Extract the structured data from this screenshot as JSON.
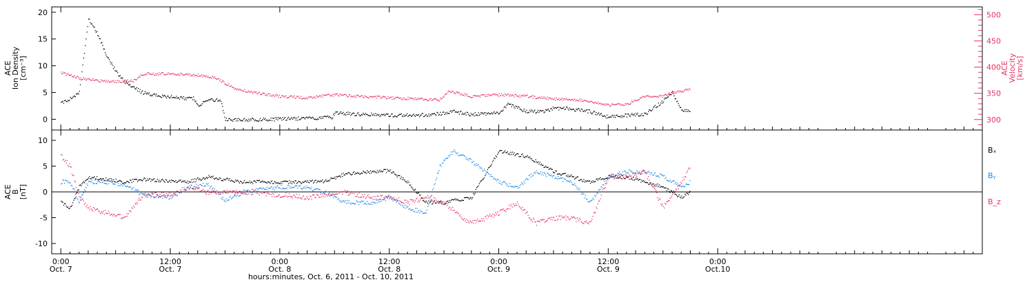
{
  "x_axis": {
    "title": "hours:minutes, Oct. 6, 2011 - Oct. 10, 2011",
    "tick_times": [
      "0:00",
      "12:00",
      "0:00",
      "12:00",
      "0:00",
      "12:00",
      "0:00"
    ],
    "tick_dates": [
      "Oct. 7",
      "Oct. 7",
      "Oct. 8",
      "Oct. 8",
      "Oct. 9",
      "Oct. 9",
      "Oct.10"
    ]
  },
  "chart_data": [
    {
      "type": "scatter",
      "panel": "top",
      "xlim": [
        "2011-10-06T23:00",
        "2011-10-11T05:00"
      ],
      "left_axis": {
        "label_lines": [
          "ACE",
          "Ion Density",
          "[cm⁻³]"
        ],
        "ylim": [
          -2,
          21
        ],
        "ticks": [
          0,
          5,
          10,
          15,
          20
        ],
        "color": "#000000"
      },
      "right_axis": {
        "label_lines": [
          "ACE",
          "Velocity",
          "[km/s]"
        ],
        "ylim": [
          280,
          515
        ],
        "ticks": [
          300,
          350,
          400,
          450,
          500
        ],
        "color": "#e8315f"
      },
      "series": [
        {
          "axis": "left",
          "color": "#000000",
          "points": [
            [
              "2011-10-07T00:00",
              3
            ],
            [
              "2011-10-07T01:00",
              4
            ],
            [
              "2011-10-07T02:00",
              5
            ],
            [
              "2011-10-07T03:00",
              19
            ],
            [
              "2011-10-07T04:00",
              16
            ],
            [
              "2011-10-07T05:00",
              12
            ],
            [
              "2011-10-07T06:00",
              9
            ],
            [
              "2011-10-07T07:00",
              7
            ],
            [
              "2011-10-07T08:00",
              6
            ],
            [
              "2011-10-07T09:00",
              5
            ],
            [
              "2011-10-07T10:00",
              4.6
            ],
            [
              "2011-10-07T12:00",
              4.3
            ],
            [
              "2011-10-07T13:30",
              4
            ],
            [
              "2011-10-07T14:30",
              4
            ],
            [
              "2011-10-07T15:00",
              2.5
            ],
            [
              "2011-10-07T16:00",
              3.7
            ],
            [
              "2011-10-07T17:30",
              3.6
            ],
            [
              "2011-10-07T18:00",
              0
            ],
            [
              "2011-10-07T21:00",
              0
            ],
            [
              "2011-10-08T00:00",
              0.1
            ],
            [
              "2011-10-08T04:00",
              0.3
            ],
            [
              "2011-10-08T05:40",
              0.4
            ],
            [
              "2011-10-08T06:00",
              1.3
            ],
            [
              "2011-10-08T09:00",
              1
            ],
            [
              "2011-10-08T12:00",
              0.8
            ],
            [
              "2011-10-08T15:00",
              0.8
            ],
            [
              "2011-10-08T18:00",
              1.2
            ],
            [
              "2011-10-08T19:00",
              1.5
            ],
            [
              "2011-10-08T21:00",
              1
            ],
            [
              "2011-10-09T00:00",
              1.2
            ],
            [
              "2011-10-09T01:00",
              3
            ],
            [
              "2011-10-09T03:00",
              1.5
            ],
            [
              "2011-10-09T05:00",
              1.5
            ],
            [
              "2011-10-09T06:00",
              2.2
            ],
            [
              "2011-10-09T08:00",
              2
            ],
            [
              "2011-10-09T10:00",
              1.5
            ],
            [
              "2011-10-09T12:00",
              0.5
            ],
            [
              "2011-10-09T14:00",
              0.8
            ],
            [
              "2011-10-09T16:00",
              1
            ],
            [
              "2011-10-09T18:00",
              3.5
            ],
            [
              "2011-10-09T19:00",
              5
            ],
            [
              "2011-10-09T20:00",
              2
            ],
            [
              "2011-10-09T21:00",
              1.5
            ]
          ]
        },
        {
          "axis": "right",
          "color": "#e8315f",
          "points": [
            [
              "2011-10-07T00:00",
              390
            ],
            [
              "2011-10-07T01:00",
              385
            ],
            [
              "2011-10-07T02:00",
              380
            ],
            [
              "2011-10-07T04:00",
              375
            ],
            [
              "2011-10-07T06:00",
              373
            ],
            [
              "2011-10-07T08:00",
              375
            ],
            [
              "2011-10-07T09:00",
              388
            ],
            [
              "2011-10-07T12:00",
              388
            ],
            [
              "2011-10-07T15:00",
              385
            ],
            [
              "2011-10-07T17:00",
              380
            ],
            [
              "2011-10-07T18:00",
              370
            ],
            [
              "2011-10-07T19:00",
              360
            ],
            [
              "2011-10-07T21:00",
              352
            ],
            [
              "2011-10-08T00:00",
              345
            ],
            [
              "2011-10-08T03:00",
              342
            ],
            [
              "2011-10-08T06:00",
              348
            ],
            [
              "2011-10-08T09:00",
              345
            ],
            [
              "2011-10-08T12:00",
              342
            ],
            [
              "2011-10-08T15:00",
              340
            ],
            [
              "2011-10-08T17:30",
              338
            ],
            [
              "2011-10-08T18:30",
              355
            ],
            [
              "2011-10-08T21:00",
              345
            ],
            [
              "2011-10-09T00:00",
              348
            ],
            [
              "2011-10-09T03:00",
              345
            ],
            [
              "2011-10-09T06:00",
              340
            ],
            [
              "2011-10-09T09:00",
              338
            ],
            [
              "2011-10-09T12:00",
              328
            ],
            [
              "2011-10-09T14:00",
              330
            ],
            [
              "2011-10-09T16:00",
              345
            ],
            [
              "2011-10-09T18:00",
              345
            ],
            [
              "2011-10-09T19:00",
              352
            ],
            [
              "2011-10-09T21:00",
              358
            ]
          ]
        }
      ]
    },
    {
      "type": "scatter",
      "panel": "bottom",
      "xlim": [
        "2011-10-06T23:00",
        "2011-10-11T05:00"
      ],
      "left_axis": {
        "label_lines": [
          "ACE",
          "B",
          "[nT]"
        ],
        "ylim": [
          -12,
          12
        ],
        "ticks": [
          -10,
          -5,
          0,
          5,
          10
        ],
        "color": "#000000"
      },
      "zero_line": 0,
      "series": [
        {
          "name": "Bₓ",
          "color": "#000000",
          "points": [
            [
              "2011-10-07T00:00",
              -2
            ],
            [
              "2011-10-07T01:00",
              -3
            ],
            [
              "2011-10-07T02:00",
              1
            ],
            [
              "2011-10-07T03:00",
              3
            ],
            [
              "2011-10-07T05:00",
              2.5
            ],
            [
              "2011-10-07T07:00",
              2
            ],
            [
              "2011-10-07T09:00",
              2.5
            ],
            [
              "2011-10-07T12:00",
              2.2
            ],
            [
              "2011-10-07T14:00",
              2
            ],
            [
              "2011-10-07T16:00",
              3
            ],
            [
              "2011-10-07T18:00",
              2.5
            ],
            [
              "2011-10-07T20:00",
              2
            ],
            [
              "2011-10-08T00:00",
              2
            ],
            [
              "2011-10-08T03:00",
              2
            ],
            [
              "2011-10-08T05:00",
              2.2
            ],
            [
              "2011-10-08T07:00",
              3.5
            ],
            [
              "2011-10-08T10:00",
              4
            ],
            [
              "2011-10-08T12:00",
              4.2
            ],
            [
              "2011-10-08T14:00",
              2
            ],
            [
              "2011-10-08T16:00",
              -2
            ],
            [
              "2011-10-08T18:00",
              -2
            ],
            [
              "2011-10-08T21:00",
              -1
            ],
            [
              "2011-10-09T00:00",
              8
            ],
            [
              "2011-10-09T03:00",
              7
            ],
            [
              "2011-10-09T06:00",
              4
            ],
            [
              "2011-10-09T08:00",
              3
            ],
            [
              "2011-10-09T10:00",
              2
            ],
            [
              "2011-10-09T12:00",
              3
            ],
            [
              "2011-10-09T14:00",
              3
            ],
            [
              "2011-10-09T16:00",
              2
            ],
            [
              "2011-10-09T18:00",
              1
            ],
            [
              "2011-10-09T20:00",
              -1
            ],
            [
              "2011-10-09T21:00",
              0
            ]
          ]
        },
        {
          "name": "Bᵧ",
          "color": "#1e88e5",
          "points": [
            [
              "2011-10-07T00:00",
              2
            ],
            [
              "2011-10-07T01:00",
              2
            ],
            [
              "2011-10-07T02:00",
              -2
            ],
            [
              "2011-10-07T03:00",
              2
            ],
            [
              "2011-10-07T05:00",
              2
            ],
            [
              "2011-10-07T07:00",
              1.5
            ],
            [
              "2011-10-07T09:00",
              -0.5
            ],
            [
              "2011-10-07T12:00",
              -1
            ],
            [
              "2011-10-07T14:00",
              1
            ],
            [
              "2011-10-07T16:00",
              1.5
            ],
            [
              "2011-10-07T18:00",
              -1.5
            ],
            [
              "2011-10-07T20:00",
              0
            ],
            [
              "2011-10-08T00:00",
              1
            ],
            [
              "2011-10-08T03:00",
              1
            ],
            [
              "2011-10-08T05:00",
              0
            ],
            [
              "2011-10-08T07:00",
              -2
            ],
            [
              "2011-10-08T10:00",
              -2
            ],
            [
              "2011-10-08T12:00",
              -1
            ],
            [
              "2011-10-08T14:00",
              -3
            ],
            [
              "2011-10-08T16:00",
              -4
            ],
            [
              "2011-10-08T17:30",
              5
            ],
            [
              "2011-10-08T19:00",
              8
            ],
            [
              "2011-10-08T21:00",
              6
            ],
            [
              "2011-10-09T00:00",
              2
            ],
            [
              "2011-10-09T02:00",
              1
            ],
            [
              "2011-10-09T04:00",
              4
            ],
            [
              "2011-10-09T06:00",
              3
            ],
            [
              "2011-10-09T08:00",
              2
            ],
            [
              "2011-10-09T10:00",
              -2
            ],
            [
              "2011-10-09T12:00",
              3
            ],
            [
              "2011-10-09T14:00",
              4
            ],
            [
              "2011-10-09T16:00",
              4
            ],
            [
              "2011-10-09T18:00",
              3
            ],
            [
              "2011-10-09T20:00",
              1
            ],
            [
              "2011-10-09T21:00",
              2
            ]
          ]
        },
        {
          "name": "B_z",
          "color": "#e8315f",
          "points": [
            [
              "2011-10-07T00:00",
              7
            ],
            [
              "2011-10-07T01:00",
              5
            ],
            [
              "2011-10-07T02:00",
              -1
            ],
            [
              "2011-10-07T03:00",
              -3
            ],
            [
              "2011-10-07T05:00",
              -4
            ],
            [
              "2011-10-07T07:00",
              -5
            ],
            [
              "2011-10-07T09:00",
              -0.5
            ],
            [
              "2011-10-07T12:00",
              -0.5
            ],
            [
              "2011-10-07T14:00",
              1
            ],
            [
              "2011-10-07T16:00",
              0
            ],
            [
              "2011-10-07T18:00",
              0
            ],
            [
              "2011-10-07T20:00",
              0
            ],
            [
              "2011-10-08T00:00",
              -0.5
            ],
            [
              "2011-10-08T03:00",
              -1
            ],
            [
              "2011-10-08T05:00",
              -0.5
            ],
            [
              "2011-10-08T07:00",
              0
            ],
            [
              "2011-10-08T10:00",
              -1
            ],
            [
              "2011-10-08T12:00",
              -1
            ],
            [
              "2011-10-08T14:00",
              -2
            ],
            [
              "2011-10-08T16:00",
              -1
            ],
            [
              "2011-10-08T18:00",
              -2
            ],
            [
              "2011-10-08T20:00",
              -5
            ],
            [
              "2011-10-08T21:00",
              -6
            ],
            [
              "2011-10-09T00:00",
              -4
            ],
            [
              "2011-10-09T02:00",
              -2
            ],
            [
              "2011-10-09T04:00",
              -6
            ],
            [
              "2011-10-09T06:00",
              -5
            ],
            [
              "2011-10-09T08:00",
              -5
            ],
            [
              "2011-10-09T10:00",
              -6
            ],
            [
              "2011-10-09T12:00",
              3
            ],
            [
              "2011-10-09T14:00",
              3
            ],
            [
              "2011-10-09T16:00",
              4
            ],
            [
              "2011-10-09T18:00",
              -3
            ],
            [
              "2011-10-09T20:00",
              2
            ],
            [
              "2011-10-09T21:00",
              5
            ]
          ]
        }
      ]
    }
  ]
}
